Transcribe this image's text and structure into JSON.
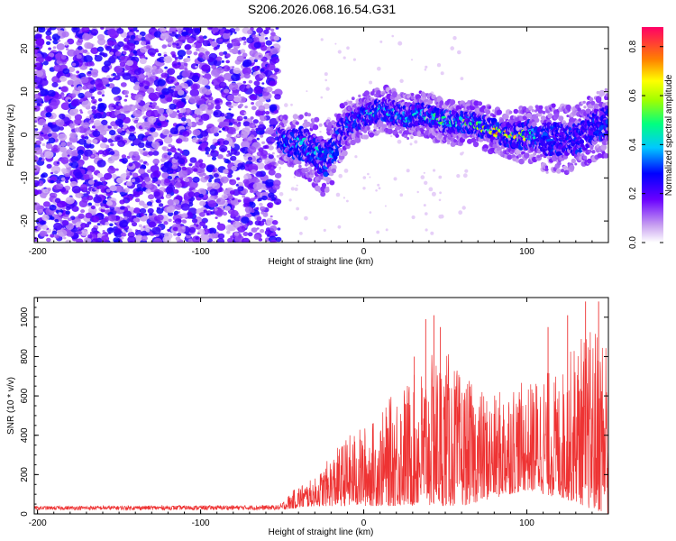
{
  "title": "S206.2026.068.16.54.G31",
  "chart_data": [
    {
      "type": "heatmap",
      "name": "spectrogram",
      "xlabel": "Height of straight line (km)",
      "ylabel": "Frequency (Hz)",
      "xlim": [
        -202,
        150
      ],
      "ylim": [
        -25,
        25
      ],
      "xticks": [
        -200,
        -100,
        0,
        100
      ],
      "yticks": [
        20,
        10,
        0,
        -10,
        -20
      ],
      "noise_region": {
        "x": [
          -202,
          -52
        ],
        "y": [
          -25,
          25
        ]
      },
      "ridge": {
        "x": [
          -52,
          -45,
          -38,
          -30,
          -22,
          -15,
          -8,
          -2,
          5,
          12,
          20,
          28,
          35,
          42,
          50,
          58,
          65,
          72,
          80,
          88,
          96,
          104,
          112,
          120,
          128,
          135,
          142,
          150
        ],
        "freq": [
          -1,
          -2,
          -2,
          -4,
          -6,
          0,
          3,
          4,
          5,
          6,
          5,
          4,
          5,
          4,
          3,
          3,
          3,
          2,
          1,
          0,
          0,
          0,
          -1,
          -1,
          -1,
          0,
          2,
          3
        ],
        "width": [
          4,
          5,
          6,
          6,
          7,
          5,
          4,
          4,
          4,
          4,
          4,
          4,
          4,
          4,
          4,
          4,
          4,
          4,
          4,
          4,
          5,
          5,
          6,
          6,
          6,
          6,
          6,
          6
        ],
        "amplitude": [
          0.35,
          0.4,
          0.45,
          0.45,
          0.45,
          0.35,
          0.35,
          0.4,
          0.45,
          0.45,
          0.45,
          0.45,
          0.5,
          0.55,
          0.55,
          0.55,
          0.6,
          0.65,
          0.75,
          0.88,
          0.8,
          0.5,
          0.35,
          0.3,
          0.3,
          0.3,
          0.3,
          0.3
        ]
      },
      "colorbar": {
        "label": "Normalized spectral amplitude",
        "range": [
          0.0,
          0.88
        ],
        "ticks": [
          "0.0",
          "0.2",
          "0.4",
          "0.6",
          "0.8"
        ],
        "tick_values": [
          0.0,
          0.2,
          0.4,
          0.6,
          0.8
        ]
      }
    },
    {
      "type": "line",
      "name": "snr",
      "xlabel": "Height of straight line (km)",
      "ylabel": "SNR (10 * v/v)",
      "xlim": [
        -202,
        150
      ],
      "ylim": [
        0,
        1100
      ],
      "xticks": [
        -200,
        -100,
        0,
        100
      ],
      "yticks": [
        0,
        200,
        400,
        600,
        800,
        1000
      ],
      "color": "#ee3333",
      "envelope": {
        "x": [
          -202,
          -52,
          -40,
          -30,
          -20,
          -10,
          0,
          10,
          20,
          30,
          40,
          50,
          60,
          70,
          80,
          90,
          100,
          110,
          120,
          130,
          140,
          150
        ],
        "low": [
          20,
          20,
          30,
          40,
          40,
          40,
          40,
          40,
          40,
          40,
          40,
          40,
          40,
          60,
          80,
          100,
          120,
          100,
          80,
          60,
          20,
          0
        ],
        "high": [
          40,
          45,
          150,
          180,
          300,
          400,
          450,
          500,
          650,
          700,
          800,
          850,
          700,
          650,
          600,
          700,
          650,
          750,
          700,
          900,
          950,
          1000
        ]
      },
      "peaks": [
        [
          43,
          1010
        ],
        [
          38,
          990
        ],
        [
          47,
          950
        ],
        [
          136,
          1080
        ],
        [
          125,
          1010
        ],
        [
          144,
          1080
        ],
        [
          113,
          950
        ],
        [
          31,
          800
        ]
      ]
    }
  ]
}
